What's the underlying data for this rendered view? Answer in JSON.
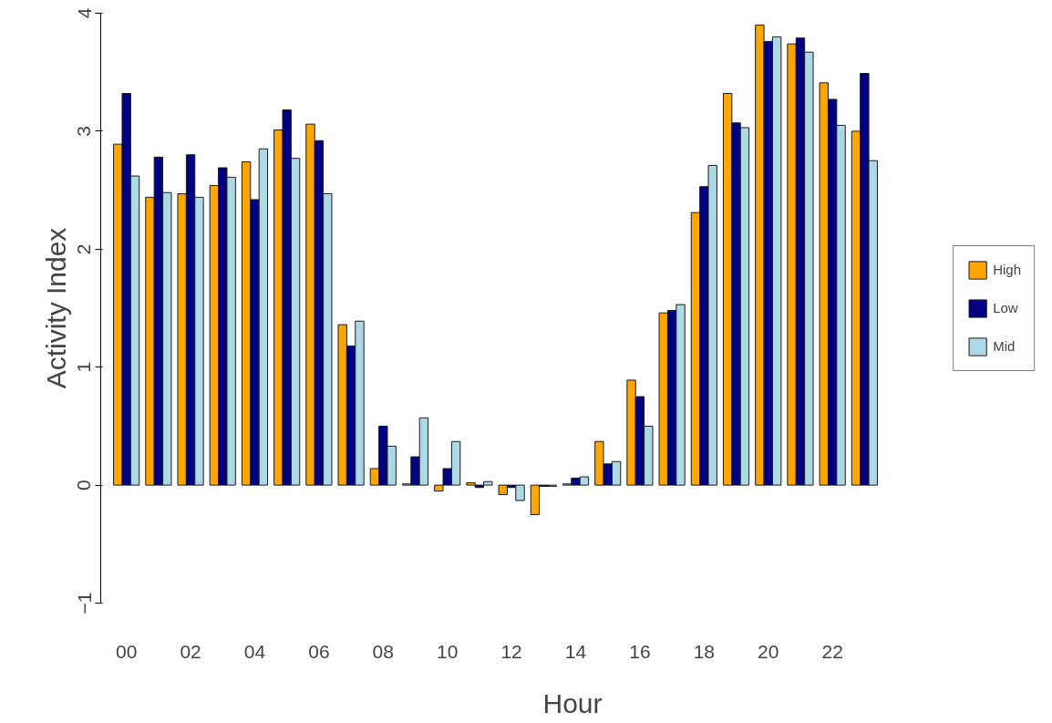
{
  "chart_data": {
    "type": "bar",
    "xlabel": "Hour",
    "ylabel": "Activity Index",
    "categories": [
      "00",
      null,
      "02",
      null,
      "04",
      null,
      "06",
      null,
      "08",
      null,
      "10",
      null,
      "12",
      null,
      "14",
      null,
      "16",
      null,
      "18",
      null,
      "20",
      null,
      "22",
      null
    ],
    "series": [
      {
        "name": "High",
        "color": "#ffa500",
        "values": [
          2.89,
          2.44,
          2.47,
          2.54,
          2.74,
          3.01,
          3.06,
          1.36,
          0.14,
          0.01,
          -0.05,
          0.02,
          -0.08,
          -0.25,
          0.01,
          0.37,
          0.89,
          1.46,
          2.31,
          3.32,
          3.9,
          3.74,
          3.41,
          3.0
        ]
      },
      {
        "name": "Low",
        "color": "#000080",
        "values": [
          3.32,
          2.78,
          2.8,
          2.69,
          2.42,
          3.18,
          2.92,
          1.18,
          0.5,
          0.24,
          0.14,
          -0.02,
          -0.02,
          -0.01,
          0.06,
          0.18,
          0.75,
          1.48,
          2.53,
          3.07,
          3.76,
          3.79,
          3.27,
          3.49
        ]
      },
      {
        "name": "Mid",
        "color": "#add8e6",
        "values": [
          2.62,
          2.48,
          2.44,
          2.61,
          2.85,
          2.77,
          2.47,
          1.39,
          0.33,
          0.57,
          0.37,
          0.03,
          -0.13,
          -0.01,
          0.07,
          0.2,
          0.5,
          1.53,
          2.71,
          3.03,
          3.8,
          3.67,
          3.05,
          2.75
        ]
      }
    ],
    "ylim": [
      -1,
      4
    ],
    "yticks": [
      -1,
      0,
      1,
      2,
      3,
      4
    ],
    "grid": false,
    "legend": "right"
  }
}
